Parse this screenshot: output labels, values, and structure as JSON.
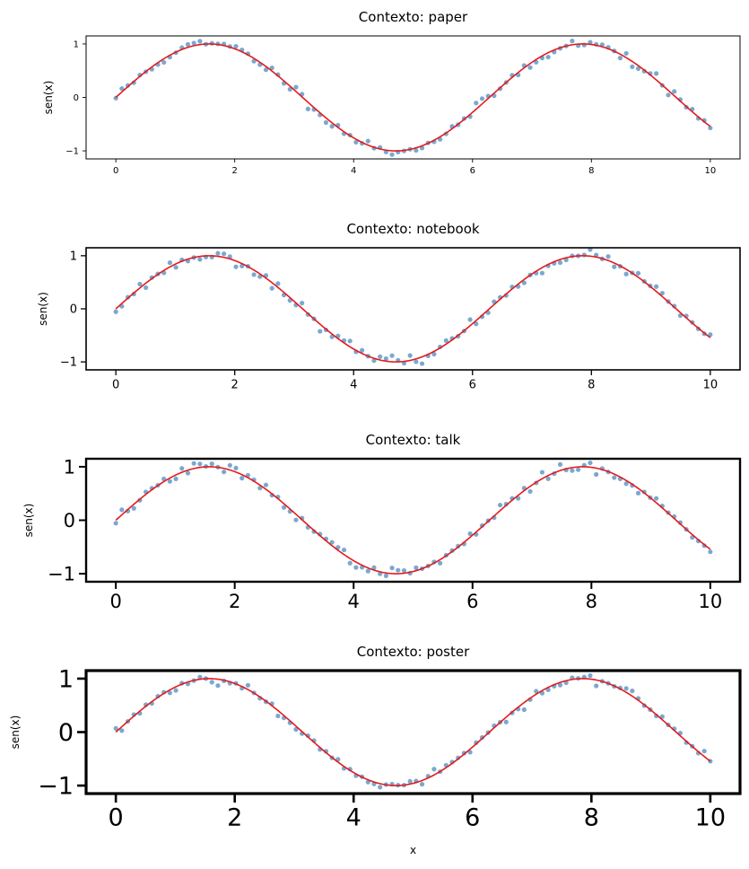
{
  "figure": {
    "xlabel": "x",
    "colors": {
      "points": "#6a9fcb",
      "curve": "#e41a1c",
      "axes": "#000000",
      "background": "#ffffff"
    }
  },
  "chart_data": [
    {
      "type": "scatter",
      "title": "Contexto: paper",
      "xlabel": "",
      "ylabel": "sen(x)",
      "xlim": [
        -0.5,
        10.5
      ],
      "ylim": [
        -1.15,
        1.15
      ],
      "xticks": [
        0,
        2,
        4,
        6,
        8,
        10
      ],
      "xtick_labels": [
        "0",
        "2",
        "4",
        "6",
        "8",
        "10"
      ],
      "yticks": [
        1,
        0,
        -1
      ],
      "ytick_labels": [
        "1",
        "0",
        "−1"
      ],
      "grid": false,
      "legend": "none",
      "series": [
        {
          "kind": "scatter",
          "x_range": [
            0,
            10
          ],
          "n": 100,
          "y_formula": "sin(x) + noise",
          "noise_sd": 0.05,
          "seed": 11
        },
        {
          "kind": "line",
          "x_range": [
            0,
            10
          ],
          "y_formula": "sin(x)"
        }
      ]
    },
    {
      "type": "scatter",
      "title": "Contexto: notebook",
      "xlabel": "",
      "ylabel": "sen(x)",
      "xlim": [
        -0.5,
        10.5
      ],
      "ylim": [
        -1.15,
        1.15
      ],
      "xticks": [
        0,
        2,
        4,
        6,
        8,
        10
      ],
      "xtick_labels": [
        "0",
        "2",
        "4",
        "6",
        "8",
        "10"
      ],
      "yticks": [
        1,
        0,
        -1
      ],
      "ytick_labels": [
        "1",
        "0",
        "−1"
      ],
      "grid": false,
      "legend": "none",
      "series": [
        {
          "kind": "scatter",
          "x_range": [
            0,
            10
          ],
          "n": 100,
          "y_formula": "sin(x) + noise",
          "noise_sd": 0.05,
          "seed": 23
        },
        {
          "kind": "line",
          "x_range": [
            0,
            10
          ],
          "y_formula": "sin(x)"
        }
      ]
    },
    {
      "type": "scatter",
      "title": "Contexto: talk",
      "xlabel": "",
      "ylabel": "sen(x)",
      "xlim": [
        -0.5,
        10.5
      ],
      "ylim": [
        -1.15,
        1.15
      ],
      "xticks": [
        0,
        2,
        4,
        6,
        8,
        10
      ],
      "xtick_labels": [
        "0",
        "2",
        "4",
        "6",
        "8",
        "10"
      ],
      "yticks": [
        1,
        0,
        -1
      ],
      "ytick_labels": [
        "1",
        "0",
        "−1"
      ],
      "grid": false,
      "legend": "none",
      "series": [
        {
          "kind": "scatter",
          "x_range": [
            0,
            10
          ],
          "n": 100,
          "y_formula": "sin(x) + noise",
          "noise_sd": 0.05,
          "seed": 37
        },
        {
          "kind": "line",
          "x_range": [
            0,
            10
          ],
          "y_formula": "sin(x)"
        }
      ]
    },
    {
      "type": "scatter",
      "title": "Contexto: poster",
      "xlabel": "x",
      "ylabel": "sen(x)",
      "xlim": [
        -0.5,
        10.5
      ],
      "ylim": [
        -1.15,
        1.15
      ],
      "xticks": [
        0,
        2,
        4,
        6,
        8,
        10
      ],
      "xtick_labels": [
        "0",
        "2",
        "4",
        "6",
        "8",
        "10"
      ],
      "yticks": [
        1,
        0,
        -1
      ],
      "ytick_labels": [
        "1",
        "0",
        "−1"
      ],
      "grid": false,
      "legend": "none",
      "series": [
        {
          "kind": "scatter",
          "x_range": [
            0,
            10
          ],
          "n": 100,
          "y_formula": "sin(x) + noise",
          "noise_sd": 0.05,
          "seed": 53
        },
        {
          "kind": "line",
          "x_range": [
            0,
            10
          ],
          "y_formula": "sin(x)"
        }
      ]
    }
  ]
}
